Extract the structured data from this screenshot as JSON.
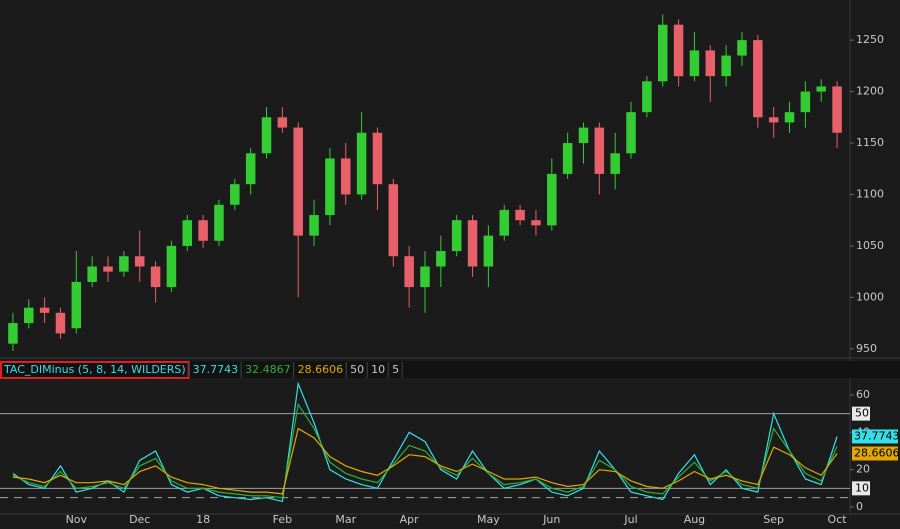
{
  "chart_data": [
    {
      "type": "candlestick",
      "categories": [
        null,
        null,
        null,
        null,
        "Nov",
        null,
        null,
        null,
        "Dec",
        null,
        null,
        null,
        "18",
        null,
        null,
        null,
        null,
        "Feb",
        null,
        null,
        null,
        "Mar",
        null,
        null,
        null,
        "Apr",
        null,
        null,
        null,
        null,
        "May",
        null,
        null,
        null,
        "Jun",
        null,
        null,
        null,
        null,
        "Jul",
        null,
        null,
        null,
        "Aug",
        null,
        null,
        null,
        null,
        "Sep",
        null,
        null,
        null,
        "Oct"
      ],
      "open": [
        955,
        975,
        990,
        985,
        970,
        1015,
        1030,
        1025,
        1040,
        1030,
        1010,
        1050,
        1075,
        1055,
        1090,
        1110,
        1140,
        1175,
        1165,
        1060,
        1080,
        1135,
        1100,
        1160,
        1110,
        1040,
        1010,
        1030,
        1045,
        1075,
        1030,
        1060,
        1085,
        1075,
        1070,
        1120,
        1150,
        1165,
        1120,
        1140,
        1180,
        1210,
        1265,
        1215,
        1240,
        1215,
        1235,
        1250,
        1175,
        1170,
        1180,
        1200,
        1205
      ],
      "high": [
        985,
        998,
        1000,
        990,
        1045,
        1040,
        1040,
        1045,
        1065,
        1035,
        1055,
        1080,
        1080,
        1095,
        1115,
        1145,
        1185,
        1185,
        1170,
        1095,
        1145,
        1150,
        1180,
        1165,
        1115,
        1050,
        1045,
        1060,
        1080,
        1080,
        1070,
        1090,
        1090,
        1085,
        1135,
        1160,
        1170,
        1170,
        1160,
        1190,
        1215,
        1275,
        1270,
        1258,
        1245,
        1245,
        1258,
        1255,
        1185,
        1190,
        1210,
        1212,
        1210
      ],
      "low": [
        948,
        970,
        975,
        960,
        965,
        1010,
        1015,
        1020,
        1015,
        995,
        1005,
        1045,
        1048,
        1050,
        1085,
        1100,
        1135,
        1160,
        1000,
        1050,
        1070,
        1090,
        1095,
        1085,
        1030,
        990,
        985,
        1010,
        1040,
        1020,
        1010,
        1055,
        1070,
        1060,
        1065,
        1115,
        1130,
        1100,
        1105,
        1135,
        1175,
        1205,
        1205,
        1210,
        1190,
        1205,
        1225,
        1165,
        1155,
        1160,
        1165,
        1190,
        1145
      ],
      "close": [
        975,
        990,
        985,
        965,
        1015,
        1030,
        1025,
        1040,
        1030,
        1010,
        1050,
        1075,
        1055,
        1090,
        1110,
        1140,
        1175,
        1165,
        1060,
        1080,
        1135,
        1100,
        1160,
        1110,
        1040,
        1010,
        1030,
        1045,
        1075,
        1030,
        1060,
        1085,
        1075,
        1070,
        1120,
        1150,
        1165,
        1120,
        1140,
        1180,
        1210,
        1265,
        1215,
        1240,
        1215,
        1235,
        1250,
        1175,
        1170,
        1180,
        1200,
        1205,
        1160
      ],
      "up_color": "#33cc33",
      "down_color": "#e8606a",
      "ylim": [
        944,
        1289
      ],
      "yticks": [
        950,
        1000,
        1050,
        1100,
        1150,
        1200,
        1250
      ]
    },
    {
      "type": "line",
      "title": "TAC_DIMinus (5, 8, 14, WILDERS)",
      "series": [
        {
          "color": "#33e0e8",
          "values": [
            18,
            12,
            10,
            22,
            8,
            10,
            14,
            8,
            25,
            30,
            12,
            8,
            10,
            6,
            5,
            4,
            5,
            3,
            66,
            45,
            20,
            15,
            12,
            10,
            25,
            40,
            35,
            20,
            15,
            30,
            18,
            10,
            12,
            15,
            8,
            6,
            10,
            30,
            20,
            8,
            6,
            4,
            18,
            28,
            12,
            20,
            10,
            8,
            50,
            30,
            15,
            12,
            37.7743
          ]
        },
        {
          "color": "#2fae3a",
          "values": [
            17,
            13,
            11,
            19,
            10,
            11,
            13,
            10,
            22,
            26,
            14,
            10,
            10,
            8,
            7,
            6,
            6,
            5,
            55,
            42,
            24,
            18,
            15,
            13,
            23,
            33,
            30,
            21,
            17,
            26,
            18,
            12,
            13,
            15,
            10,
            8,
            11,
            25,
            20,
            11,
            8,
            7,
            16,
            24,
            14,
            19,
            12,
            10,
            42,
            30,
            18,
            14,
            32.4867
          ]
        },
        {
          "color": "#e0a800",
          "values": [
            16,
            15,
            13,
            17,
            13,
            13,
            14,
            12,
            19,
            22,
            16,
            13,
            12,
            10,
            9,
            8,
            8,
            7,
            42,
            37,
            27,
            22,
            19,
            17,
            22,
            28,
            27,
            22,
            19,
            23,
            19,
            15,
            15,
            16,
            13,
            11,
            12,
            20,
            19,
            14,
            11,
            10,
            14,
            19,
            15,
            17,
            14,
            12,
            32,
            28,
            21,
            17,
            28.6606
          ]
        }
      ],
      "levels": [
        50,
        10,
        5
      ],
      "level_styles": [
        "solid",
        "solid",
        "dashed"
      ],
      "level_color": "#a0a0a0",
      "ylim": [
        -1.6,
        68
      ],
      "yticks": [
        0,
        20,
        40,
        60
      ]
    }
  ]
}
